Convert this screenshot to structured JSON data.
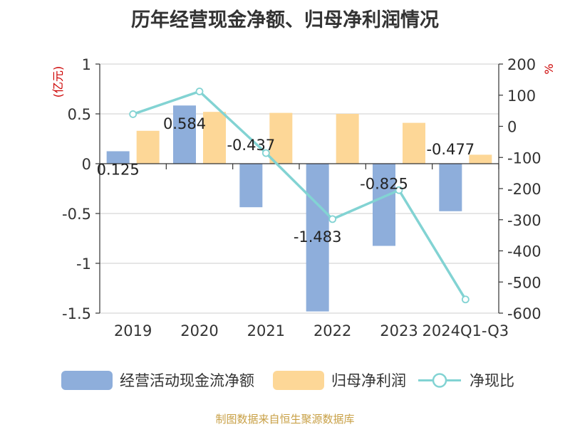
{
  "title": "历年经营现金净额、归母净利润情况",
  "source": "制图数据来自恒生聚源数据库",
  "chart_data": {
    "type": "bar",
    "categories": [
      "2019",
      "2020",
      "2021",
      "2022",
      "2023",
      "2024Q1-Q3"
    ],
    "y_left": {
      "unit": "(亿元)",
      "ylim": [
        -1.5,
        1
      ],
      "ticks": [
        "1",
        "0.5",
        "0",
        "-0.5",
        "-1",
        "-1.5"
      ]
    },
    "y_right": {
      "unit": "%",
      "ylim": [
        -600,
        200
      ],
      "ticks": [
        "200",
        "100",
        "0",
        "-100",
        "-200",
        "-300",
        "-400",
        "-500",
        "-600"
      ]
    },
    "series": [
      {
        "name": "经营活动现金流净额",
        "type": "bar",
        "axis": "left",
        "color": "#8eaedb",
        "values": [
          0.125,
          0.584,
          -0.437,
          -1.483,
          -0.825,
          -0.477
        ],
        "labels": [
          "0.125",
          "0.584",
          "-0.437",
          "-1.483",
          "-0.825",
          "-0.477"
        ]
      },
      {
        "name": "归母净利润",
        "type": "bar",
        "axis": "left",
        "color": "#fdd797",
        "values": [
          0.33,
          0.52,
          0.51,
          0.5,
          0.41,
          0.09
        ]
      },
      {
        "name": "净现比",
        "type": "line",
        "axis": "right",
        "color": "#82d3d3",
        "values": [
          39,
          112,
          -86,
          -298,
          -205,
          -556
        ]
      }
    ],
    "grid": true,
    "legend_position": "bottom"
  }
}
